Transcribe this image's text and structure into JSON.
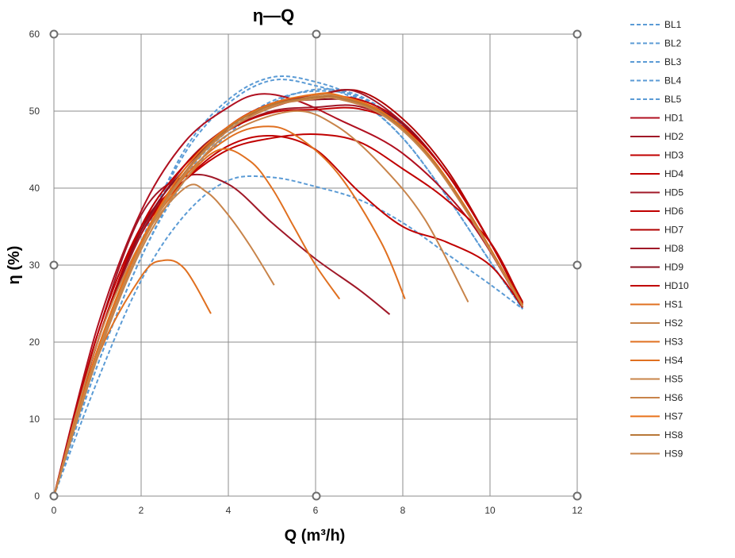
{
  "chart_data": {
    "type": "line",
    "title": "η—Q",
    "xlabel": "Q (m³/h)",
    "ylabel": "η (%)",
    "xlim": [
      0,
      12
    ],
    "ylim": [
      0,
      60
    ],
    "xticks": [
      0,
      2,
      4,
      6,
      8,
      10,
      12
    ],
    "yticks": [
      0,
      10,
      20,
      30,
      40,
      50,
      60
    ],
    "grid": true,
    "legend": "right",
    "series": [
      {
        "name": "BL1",
        "color": "#5b9bd5",
        "dashed": true,
        "points": [
          [
            0,
            0
          ],
          [
            1,
            18
          ],
          [
            2,
            33
          ],
          [
            3,
            45
          ],
          [
            4,
            51.5
          ],
          [
            5,
            54.4
          ],
          [
            6,
            53.8
          ],
          [
            7,
            51.5
          ],
          [
            8,
            46.5
          ],
          [
            9,
            39
          ],
          [
            10,
            30.5
          ],
          [
            10.75,
            24.3
          ]
        ]
      },
      {
        "name": "BL2",
        "color": "#5b9bd5",
        "dashed": true,
        "points": [
          [
            0,
            0
          ],
          [
            1,
            18
          ],
          [
            2,
            33
          ],
          [
            3,
            44.5
          ],
          [
            4,
            51
          ],
          [
            5,
            54
          ],
          [
            6,
            53.3
          ],
          [
            7,
            51.3
          ],
          [
            8,
            46.5
          ],
          [
            9,
            39
          ],
          [
            10,
            30.5
          ],
          [
            10.75,
            24.3
          ]
        ]
      },
      {
        "name": "BL3",
        "color": "#5b9bd5",
        "dashed": true,
        "points": [
          [
            0,
            0
          ],
          [
            1,
            17
          ],
          [
            2,
            31
          ],
          [
            3,
            41
          ],
          [
            4,
            47
          ],
          [
            5,
            51
          ],
          [
            6,
            52.8
          ],
          [
            7,
            52
          ],
          [
            8,
            48
          ],
          [
            9,
            41
          ],
          [
            10,
            32
          ],
          [
            10.75,
            24.5
          ]
        ]
      },
      {
        "name": "BL4",
        "color": "#5b9bd5",
        "dashed": true,
        "points": [
          [
            0,
            0
          ],
          [
            1,
            15
          ],
          [
            2,
            28
          ],
          [
            3,
            36.5
          ],
          [
            4,
            41
          ],
          [
            5,
            41.4
          ],
          [
            6,
            40.2
          ],
          [
            7,
            38.5
          ],
          [
            8,
            35.5
          ],
          [
            9,
            31.5
          ],
          [
            10,
            27.5
          ],
          [
            10.75,
            24.3
          ]
        ]
      },
      {
        "name": "BL5",
        "color": "#5b9bd5",
        "dashed": true,
        "points": [
          [
            0,
            0
          ],
          [
            1,
            17
          ],
          [
            2,
            31
          ],
          [
            3,
            41.5
          ],
          [
            4,
            47.5
          ],
          [
            5,
            51.3
          ],
          [
            6,
            52.6
          ],
          [
            7,
            51.8
          ],
          [
            8,
            48
          ],
          [
            9,
            41
          ],
          [
            10,
            32
          ],
          [
            10.75,
            24.5
          ]
        ]
      },
      {
        "name": "HD1",
        "color": "#b01020",
        "points": [
          [
            0,
            0
          ],
          [
            1,
            22
          ],
          [
            2,
            37
          ],
          [
            3,
            46
          ],
          [
            4,
            50.5
          ],
          [
            4.7,
            52.2
          ],
          [
            5.5,
            51.5
          ],
          [
            6.5,
            49
          ],
          [
            8,
            44.5
          ],
          [
            9.5,
            36
          ],
          [
            10.75,
            24.5
          ]
        ]
      },
      {
        "name": "HD2",
        "color": "#a01828",
        "points": [
          [
            0,
            0
          ],
          [
            1,
            21
          ],
          [
            2,
            36.5
          ],
          [
            3,
            41.5
          ],
          [
            4,
            40.5
          ],
          [
            5,
            35.5
          ],
          [
            6,
            30.8
          ],
          [
            7,
            26.8
          ],
          [
            7.7,
            23.6
          ]
        ]
      },
      {
        "name": "HD3",
        "color": "#c00000",
        "points": [
          [
            0,
            0
          ],
          [
            1,
            21
          ],
          [
            2,
            35
          ],
          [
            3,
            41
          ],
          [
            4,
            45
          ],
          [
            5,
            46.5
          ],
          [
            6,
            47
          ],
          [
            7,
            46
          ],
          [
            8,
            42.5
          ],
          [
            9,
            38.5
          ],
          [
            10,
            33
          ],
          [
            10.75,
            25
          ]
        ]
      },
      {
        "name": "HD4",
        "color": "#c00000",
        "points": [
          [
            0,
            0
          ],
          [
            1,
            20
          ],
          [
            2,
            34
          ],
          [
            3,
            41
          ],
          [
            4,
            45.5
          ],
          [
            5,
            46.8
          ],
          [
            6,
            45
          ],
          [
            7,
            39.5
          ],
          [
            8,
            35
          ],
          [
            9,
            33
          ],
          [
            10,
            30
          ],
          [
            10.75,
            24.5
          ]
        ]
      },
      {
        "name": "HD5",
        "color": "#a01828",
        "points": [
          [
            0,
            0
          ],
          [
            1,
            20
          ],
          [
            2,
            35
          ],
          [
            3,
            43
          ],
          [
            4,
            47.5
          ],
          [
            5,
            50
          ],
          [
            6,
            50.5
          ],
          [
            7,
            50.6
          ],
          [
            8,
            48
          ],
          [
            9,
            42
          ],
          [
            10,
            33
          ],
          [
            10.75,
            25
          ]
        ]
      },
      {
        "name": "HD6",
        "color": "#c00000",
        "points": [
          [
            0,
            0
          ],
          [
            1,
            20
          ],
          [
            2,
            34
          ],
          [
            3,
            42
          ],
          [
            4,
            48
          ],
          [
            5,
            51
          ],
          [
            6,
            51.8
          ],
          [
            7,
            51.5
          ],
          [
            8,
            48.5
          ],
          [
            9,
            42
          ],
          [
            10,
            33
          ],
          [
            10.75,
            25
          ]
        ]
      },
      {
        "name": "HD7",
        "color": "#b00000",
        "points": [
          [
            0,
            0
          ],
          [
            1,
            19
          ],
          [
            2,
            33
          ],
          [
            3,
            42
          ],
          [
            4,
            48
          ],
          [
            5,
            50.5
          ],
          [
            6,
            52
          ],
          [
            7,
            52.6
          ],
          [
            8,
            49
          ],
          [
            9,
            42.5
          ],
          [
            10,
            33
          ],
          [
            10.75,
            25.2
          ]
        ]
      },
      {
        "name": "HD8",
        "color": "#a01828",
        "points": [
          [
            0,
            0
          ],
          [
            1,
            20
          ],
          [
            2,
            34
          ],
          [
            3,
            43
          ],
          [
            4,
            48
          ],
          [
            5,
            51
          ],
          [
            6,
            52
          ],
          [
            6.9,
            52.6
          ],
          [
            8,
            48.5
          ],
          [
            9,
            42
          ],
          [
            10,
            33
          ],
          [
            10.75,
            25
          ]
        ]
      },
      {
        "name": "HD9",
        "color": "#8b1020",
        "points": [
          [
            0,
            0
          ],
          [
            1,
            20
          ],
          [
            2,
            34.5
          ],
          [
            3,
            42.5
          ],
          [
            4,
            48
          ],
          [
            5,
            50.8
          ],
          [
            6,
            51.5
          ],
          [
            7,
            51.2
          ],
          [
            8,
            48.3
          ],
          [
            9,
            42
          ],
          [
            10,
            33
          ],
          [
            10.75,
            24.8
          ]
        ]
      },
      {
        "name": "HD10",
        "color": "#c00000",
        "points": [
          [
            0,
            0
          ],
          [
            1,
            20
          ],
          [
            2,
            35
          ],
          [
            3,
            43
          ],
          [
            4,
            47.5
          ],
          [
            5,
            49.8
          ],
          [
            6,
            50.2
          ],
          [
            7,
            50.3
          ],
          [
            8,
            48
          ],
          [
            9,
            42
          ],
          [
            10,
            33
          ],
          [
            10.75,
            25
          ]
        ]
      },
      {
        "name": "HS1",
        "color": "#e07020",
        "points": [
          [
            0,
            0
          ],
          [
            1,
            18
          ],
          [
            2,
            28.5
          ],
          [
            2.5,
            30.6
          ],
          [
            3,
            29.5
          ],
          [
            3.6,
            23.7
          ]
        ]
      },
      {
        "name": "HS2",
        "color": "#c8844a",
        "points": [
          [
            0,
            0
          ],
          [
            1,
            20
          ],
          [
            2,
            33
          ],
          [
            3,
            40
          ],
          [
            3.5,
            39.5
          ],
          [
            4,
            36.5
          ],
          [
            4.5,
            32.5
          ],
          [
            5.05,
            27.4
          ]
        ]
      },
      {
        "name": "HS3",
        "color": "#e07020",
        "points": [
          [
            0,
            0
          ],
          [
            1,
            19
          ],
          [
            2,
            33
          ],
          [
            3,
            41
          ],
          [
            3.8,
            45
          ],
          [
            4.5,
            43.5
          ],
          [
            5,
            40
          ],
          [
            5.5,
            35
          ],
          [
            6,
            30
          ],
          [
            6.55,
            25.6
          ]
        ]
      },
      {
        "name": "HS4",
        "color": "#e07020",
        "points": [
          [
            0,
            0
          ],
          [
            1,
            19
          ],
          [
            2,
            33
          ],
          [
            3,
            41.5
          ],
          [
            4,
            46.5
          ],
          [
            4.8,
            48
          ],
          [
            5.5,
            47
          ],
          [
            6.5,
            42
          ],
          [
            7.5,
            33
          ],
          [
            8.05,
            25.6
          ]
        ]
      },
      {
        "name": "HS5",
        "color": "#c8844a",
        "points": [
          [
            0,
            0
          ],
          [
            1,
            18
          ],
          [
            2,
            32
          ],
          [
            3,
            41
          ],
          [
            4,
            47
          ],
          [
            5.5,
            50
          ],
          [
            6.5,
            48
          ],
          [
            7.5,
            43
          ],
          [
            8.5,
            36
          ],
          [
            9.5,
            25.2
          ]
        ]
      },
      {
        "name": "HS6",
        "color": "#c8844a",
        "points": [
          [
            0,
            0
          ],
          [
            1,
            19
          ],
          [
            2,
            33
          ],
          [
            3,
            42
          ],
          [
            4,
            47.5
          ],
          [
            5,
            50.5
          ],
          [
            6,
            52
          ],
          [
            6.5,
            52
          ],
          [
            7.5,
            50
          ],
          [
            8.5,
            45
          ],
          [
            9.5,
            37
          ],
          [
            10.75,
            24.8
          ]
        ]
      },
      {
        "name": "HS7",
        "color": "#e87018",
        "points": [
          [
            0,
            0
          ],
          [
            1,
            19
          ],
          [
            2,
            33
          ],
          [
            3,
            42.5
          ],
          [
            4,
            48
          ],
          [
            5,
            51
          ],
          [
            6,
            52.2
          ],
          [
            6.5,
            52.1
          ],
          [
            7.5,
            50
          ],
          [
            8.5,
            45
          ],
          [
            9.5,
            37
          ],
          [
            10.75,
            24.8
          ]
        ]
      },
      {
        "name": "HS8",
        "color": "#b87838",
        "points": [
          [
            0,
            0
          ],
          [
            1,
            18.5
          ],
          [
            2,
            32.5
          ],
          [
            3,
            42
          ],
          [
            4,
            47.8
          ],
          [
            5,
            50.8
          ],
          [
            6,
            51.8
          ],
          [
            6.5,
            51.8
          ],
          [
            7.5,
            49.8
          ],
          [
            8.5,
            44.8
          ],
          [
            9.5,
            36.8
          ],
          [
            10.75,
            24.6
          ]
        ]
      },
      {
        "name": "HS9",
        "color": "#c8844a",
        "points": [
          [
            0,
            0
          ],
          [
            1,
            18.5
          ],
          [
            2,
            32.5
          ],
          [
            3,
            41.8
          ],
          [
            4,
            47.5
          ],
          [
            5,
            50.6
          ],
          [
            6,
            51.6
          ],
          [
            6.5,
            51.6
          ],
          [
            7.5,
            49.6
          ],
          [
            8.5,
            44.6
          ],
          [
            9.5,
            36.6
          ],
          [
            10.75,
            24.6
          ]
        ]
      }
    ]
  }
}
